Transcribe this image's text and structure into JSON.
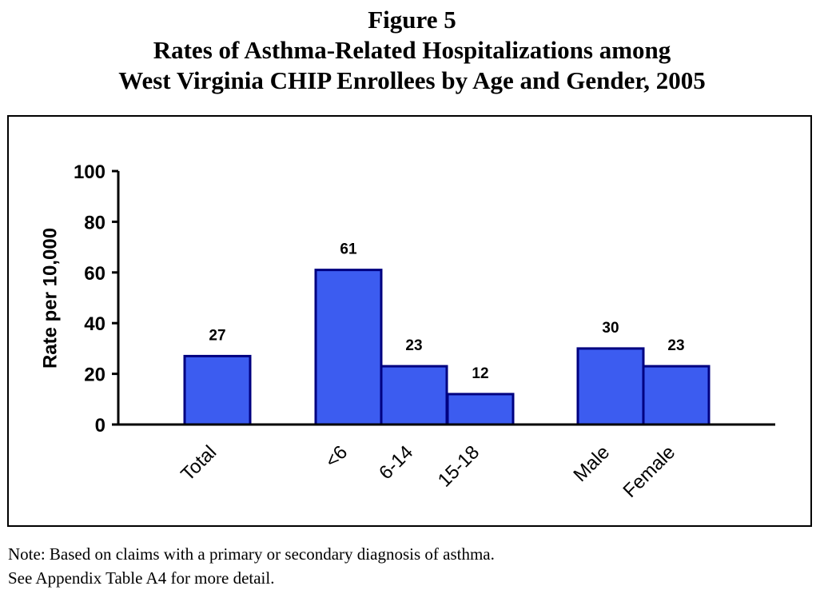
{
  "figure": {
    "number": "Figure 5",
    "title_line1": "Rates of Asthma-Related Hospitalizations among",
    "title_line2": "West Virginia CHIP Enrollees by Age and Gender, 2005"
  },
  "chart_data": {
    "type": "bar",
    "categories": [
      "Total",
      "<6",
      "6-14",
      "15-18",
      "Male",
      "Female"
    ],
    "values": [
      27,
      61,
      23,
      12,
      30,
      23
    ],
    "groups": [
      [
        "Total"
      ],
      [
        "<6",
        "6-14",
        "15-18"
      ],
      [
        "Male",
        "Female"
      ]
    ],
    "ylabel": "Rate per 10,000",
    "xlabel": "",
    "ylim": [
      0,
      100
    ],
    "yticks": [
      0,
      20,
      40,
      60,
      80,
      100
    ],
    "grid": false,
    "bar_color": "#3c5cf0",
    "bar_outline": "#000080"
  },
  "notes": {
    "line1": "Note: Based on claims with a primary or secondary diagnosis of asthma.",
    "line2": "See Appendix Table A4 for more detail."
  }
}
